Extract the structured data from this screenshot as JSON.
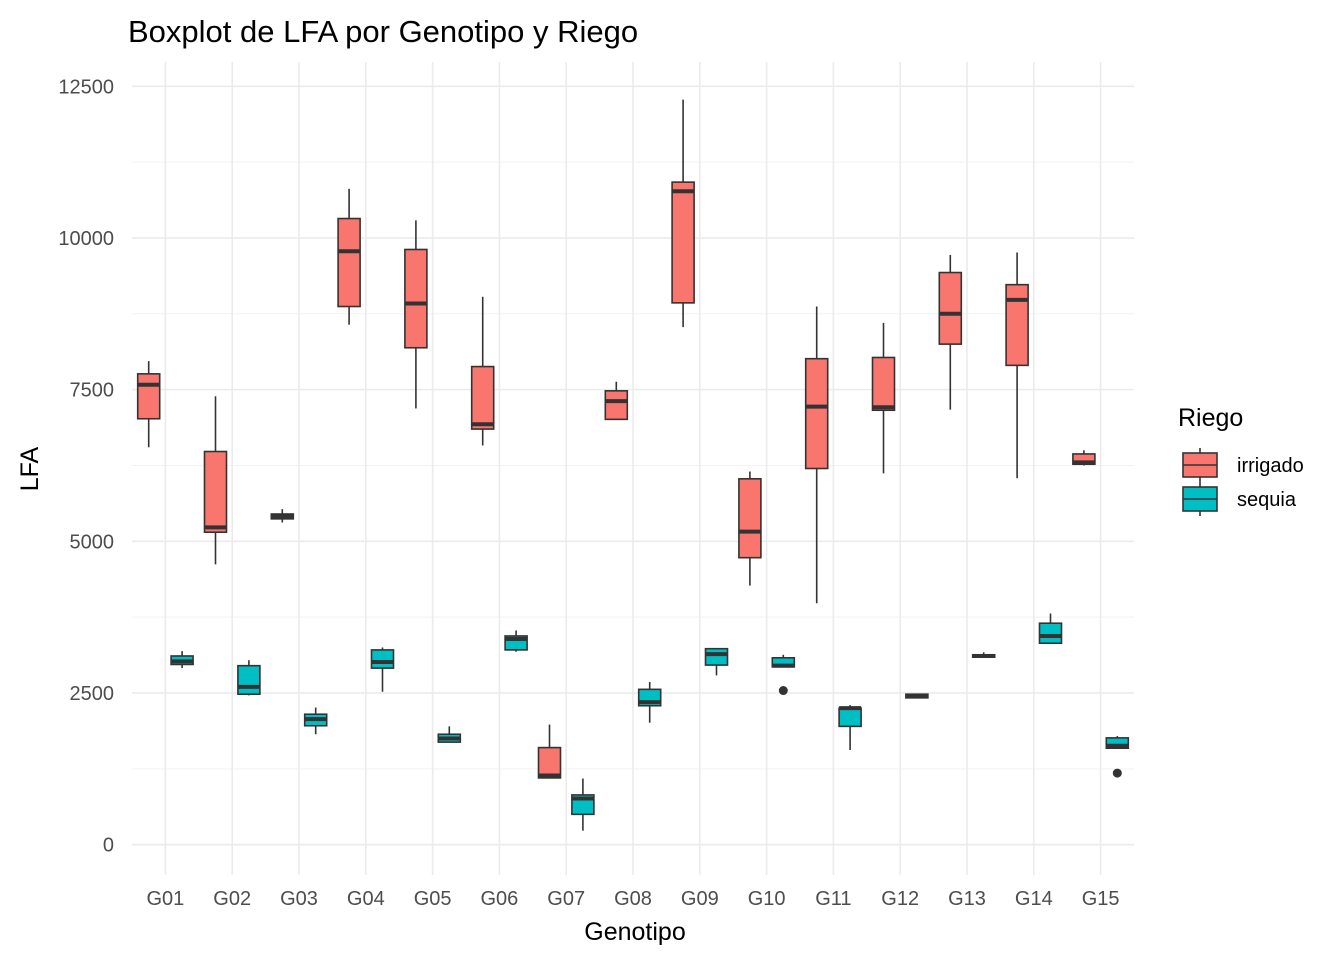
{
  "chart_data": {
    "type": "boxplot",
    "title": "Boxplot de LFA por Genotipo y Riego",
    "xlabel": "Genotipo",
    "ylabel": "LFA",
    "ylim": [
      -500,
      12900
    ],
    "yticks": [
      0,
      2500,
      5000,
      7500,
      10000,
      12500
    ],
    "grid": true,
    "legend_placement": "right",
    "legend_title": "Riego",
    "categories": [
      "G01",
      "G02",
      "G03",
      "G04",
      "G05",
      "G06",
      "G07",
      "G08",
      "G09",
      "G10",
      "G11",
      "G12",
      "G13",
      "G14",
      "G15"
    ],
    "series": [
      {
        "name": "irrigado",
        "color": "#F8766D",
        "boxes": [
          {
            "category": "G01",
            "min": 6550,
            "q1": 7020,
            "median": 7580,
            "q3": 7760,
            "max": 7970,
            "outliers": []
          },
          {
            "category": "G02",
            "min": 4620,
            "q1": 5150,
            "median": 5230,
            "q3": 6480,
            "max": 7390,
            "outliers": []
          },
          {
            "category": "G03",
            "min": 5310,
            "q1": 5370,
            "median": 5410,
            "q3": 5450,
            "max": 5530,
            "outliers": []
          },
          {
            "category": "G04",
            "min": 8570,
            "q1": 8870,
            "median": 9780,
            "q3": 10320,
            "max": 10810,
            "outliers": []
          },
          {
            "category": "G05",
            "min": 7190,
            "q1": 8190,
            "median": 8920,
            "q3": 9810,
            "max": 10290,
            "outliers": []
          },
          {
            "category": "G06",
            "min": 6580,
            "q1": 6850,
            "median": 6930,
            "q3": 7880,
            "max": 9030,
            "outliers": []
          },
          {
            "category": "G07",
            "min": 1100,
            "q1": 1100,
            "median": 1140,
            "q3": 1600,
            "max": 1980,
            "outliers": []
          },
          {
            "category": "G08",
            "min": 7010,
            "q1": 7010,
            "median": 7310,
            "q3": 7480,
            "max": 7630,
            "outliers": []
          },
          {
            "category": "G09",
            "min": 8530,
            "q1": 8930,
            "median": 10770,
            "q3": 10920,
            "max": 12280,
            "outliers": []
          },
          {
            "category": "G10",
            "min": 4270,
            "q1": 4730,
            "median": 5160,
            "q3": 6030,
            "max": 6150,
            "outliers": []
          },
          {
            "category": "G11",
            "min": 3980,
            "q1": 6200,
            "median": 7220,
            "q3": 8010,
            "max": 8870,
            "outliers": []
          },
          {
            "category": "G12",
            "min": 6120,
            "q1": 7160,
            "median": 7210,
            "q3": 8030,
            "max": 8600,
            "outliers": []
          },
          {
            "category": "G13",
            "min": 7170,
            "q1": 8250,
            "median": 8750,
            "q3": 9430,
            "max": 9720,
            "outliers": []
          },
          {
            "category": "G14",
            "min": 6040,
            "q1": 7900,
            "median": 8980,
            "q3": 9230,
            "max": 9760,
            "outliers": []
          },
          {
            "category": "G15",
            "min": 6250,
            "q1": 6270,
            "median": 6300,
            "q3": 6440,
            "max": 6500,
            "outliers": []
          }
        ]
      },
      {
        "name": "sequia",
        "color": "#00BFC4",
        "boxes": [
          {
            "category": "G01",
            "min": 2910,
            "q1": 2970,
            "median": 3020,
            "q3": 3110,
            "max": 3190,
            "outliers": []
          },
          {
            "category": "G02",
            "min": 2460,
            "q1": 2480,
            "median": 2600,
            "q3": 2950,
            "max": 3040,
            "outliers": []
          },
          {
            "category": "G03",
            "min": 1820,
            "q1": 1960,
            "median": 2070,
            "q3": 2150,
            "max": 2260,
            "outliers": []
          },
          {
            "category": "G04",
            "min": 2520,
            "q1": 2910,
            "median": 3010,
            "q3": 3210,
            "max": 3250,
            "outliers": []
          },
          {
            "category": "G05",
            "min": 1690,
            "q1": 1690,
            "median": 1750,
            "q3": 1820,
            "max": 1950,
            "outliers": []
          },
          {
            "category": "G06",
            "min": 3180,
            "q1": 3210,
            "median": 3390,
            "q3": 3440,
            "max": 3530,
            "outliers": []
          },
          {
            "category": "G07",
            "min": 230,
            "q1": 500,
            "median": 760,
            "q3": 820,
            "max": 1090,
            "outliers": []
          },
          {
            "category": "G08",
            "min": 2010,
            "q1": 2290,
            "median": 2350,
            "q3": 2560,
            "max": 2680,
            "outliers": []
          },
          {
            "category": "G09",
            "min": 2790,
            "q1": 2960,
            "median": 3140,
            "q3": 3230,
            "max": 3230,
            "outliers": []
          },
          {
            "category": "G10",
            "min": 2930,
            "q1": 2930,
            "median": 2950,
            "q3": 3080,
            "max": 3130,
            "outliers": [
              2540
            ]
          },
          {
            "category": "G11",
            "min": 1560,
            "q1": 1950,
            "median": 2250,
            "q3": 2250,
            "max": 2300,
            "outliers": []
          },
          {
            "category": "G12",
            "min": 2420,
            "q1": 2420,
            "median": 2450,
            "q3": 2480,
            "max": 2480,
            "outliers": []
          },
          {
            "category": "G13",
            "min": 3080,
            "q1": 3090,
            "median": 3110,
            "q3": 3130,
            "max": 3170,
            "outliers": []
          },
          {
            "category": "G14",
            "min": 3320,
            "q1": 3320,
            "median": 3440,
            "q3": 3650,
            "max": 3810,
            "outliers": []
          },
          {
            "category": "G15",
            "min": 1590,
            "q1": 1590,
            "median": 1630,
            "q3": 1760,
            "max": 1790,
            "outliers": [
              1180
            ]
          }
        ]
      }
    ]
  }
}
